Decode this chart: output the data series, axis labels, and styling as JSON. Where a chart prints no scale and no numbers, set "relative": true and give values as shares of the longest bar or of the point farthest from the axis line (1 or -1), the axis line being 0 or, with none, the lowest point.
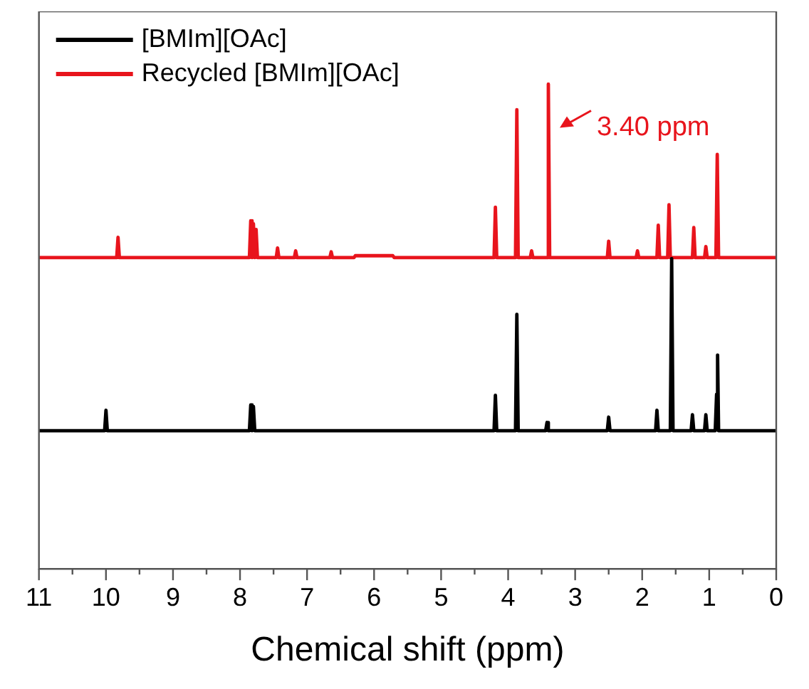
{
  "chart_data": {
    "type": "line",
    "xlabel": "Chemical shift (ppm)",
    "relative": true,
    "legend": "top left",
    "grid": false,
    "marker": "none",
    "line_style": "solid",
    "xlim": [
      11,
      0
    ],
    "xticks": [
      11,
      {
        "value": 10.5,
        "label": null
      },
      10,
      {
        "value": 9.5,
        "label": null
      },
      9,
      {
        "value": 8.5,
        "label": null
      },
      8,
      {
        "value": 7.5,
        "label": null
      },
      7,
      {
        "value": 6.5,
        "label": null
      },
      6,
      {
        "value": 5.5,
        "label": null
      },
      5,
      {
        "value": 4.5,
        "label": null
      },
      4,
      {
        "value": 3.5,
        "label": null
      },
      3,
      {
        "value": 2.5,
        "label": null
      },
      2,
      {
        "value": 1.5,
        "label": null
      },
      1,
      {
        "value": 0.5,
        "label": null
      },
      0
    ],
    "series": [
      {
        "name": "[BMIm][OAc]",
        "color": "#000000",
        "x": [
          11,
          10.02,
          10.0,
          9.98,
          7.86,
          7.84,
          7.82,
          7.8,
          7.78,
          4.21,
          4.19,
          4.17,
          3.89,
          3.87,
          3.85,
          3.44,
          3.42,
          3.4,
          2.52,
          2.5,
          2.48,
          1.8,
          1.78,
          1.76,
          1.58,
          1.56,
          1.54,
          1.27,
          1.25,
          1.23,
          1.07,
          1.05,
          1.03,
          0.91,
          0.89,
          0.875,
          0.86,
          0
        ],
        "values": [
          0.285,
          0.285,
          0.327,
          0.285,
          0.285,
          0.338,
          0.285,
          0.335,
          0.285,
          0.285,
          0.358,
          0.285,
          0.285,
          0.525,
          0.285,
          0.285,
          0.302,
          0.285,
          0.285,
          0.313,
          0.285,
          0.285,
          0.327,
          0.285,
          0.285,
          0.64,
          0.285,
          0.285,
          0.318,
          0.285,
          0.285,
          0.318,
          0.285,
          0.285,
          0.36,
          0.441,
          0.285,
          0.285
        ]
      },
      {
        "name": "Recycled [BMIm][OAc]",
        "color": "#e8141c",
        "x": [
          11,
          9.84,
          9.82,
          9.8,
          7.86,
          7.84,
          7.82,
          7.8,
          7.78,
          7.76,
          7.74,
          7.46,
          7.44,
          7.42,
          7.19,
          7.17,
          7.15,
          6.66,
          6.64,
          6.62,
          6.3,
          6.28,
          5.72,
          5.7,
          4.21,
          4.19,
          4.17,
          3.89,
          3.87,
          3.85,
          3.67,
          3.65,
          3.63,
          3.42,
          3.4,
          3.38,
          2.52,
          2.5,
          2.48,
          2.09,
          2.07,
          2.05,
          1.78,
          1.76,
          1.74,
          1.62,
          1.6,
          1.58,
          1.25,
          1.23,
          1.21,
          1.07,
          1.05,
          1.03,
          0.9,
          0.88,
          0.86,
          0
        ],
        "values": [
          0.642,
          0.642,
          0.684,
          0.642,
          0.642,
          0.718,
          0.642,
          0.712,
          0.642,
          0.7,
          0.642,
          0.642,
          0.662,
          0.642,
          0.642,
          0.656,
          0.642,
          0.642,
          0.654,
          0.642,
          0.642,
          0.646,
          0.646,
          0.642,
          0.642,
          0.746,
          0.642,
          0.642,
          0.947,
          0.642,
          0.642,
          0.656,
          0.642,
          0.642,
          1.0,
          0.642,
          0.642,
          0.676,
          0.642,
          0.642,
          0.656,
          0.642,
          0.642,
          0.709,
          0.642,
          0.642,
          0.751,
          0.642,
          0.642,
          0.704,
          0.642,
          0.642,
          0.665,
          0.642,
          0.642,
          0.855,
          0.642,
          0.642
        ]
      }
    ],
    "annotations": [
      {
        "text": "3.40 ppm",
        "x": 3.4,
        "y": 0.91
      }
    ]
  }
}
